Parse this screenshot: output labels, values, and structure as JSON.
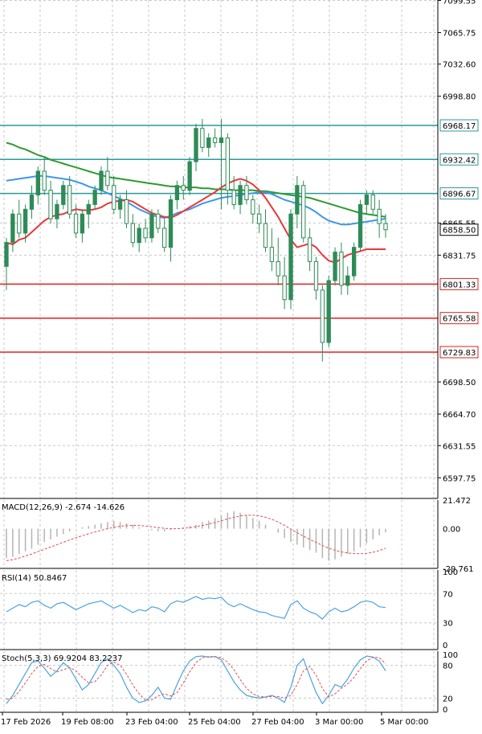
{
  "colors": {
    "background": "#ffffff",
    "grid": "#c8c8c8",
    "frame": "#000000",
    "candle": "#2e8b57",
    "ema_fast": "#e8373a",
    "ema_mid": "#3f97e6",
    "ema_slow": "#2e9a2e",
    "resistance": "#2a9a9a",
    "support": "#e02020",
    "macd_hist": "#b4b4b4",
    "macd_signal": "#e05050",
    "rsi": "#4aa3df",
    "stoch_main": "#4aa3df",
    "stoch_signal": "#e05050"
  },
  "chart_data": [
    {
      "type": "candlestick",
      "panel": "price",
      "ylim": [
        6576,
        7100
      ],
      "y_ticks": [
        {
          "value": 7099.55,
          "label": "7099.55"
        },
        {
          "value": 7065.75,
          "label": "7065.75"
        },
        {
          "value": 7032.6,
          "label": "7032.60"
        },
        {
          "value": 6998.8,
          "label": "6998.80"
        },
        {
          "value": 6865.55,
          "label": "6865.55"
        },
        {
          "value": 6831.75,
          "label": "6831.75"
        },
        {
          "value": 6698.5,
          "label": "6698.50"
        },
        {
          "value": 6664.7,
          "label": "6664.70"
        },
        {
          "value": 6631.55,
          "label": "6631.55"
        },
        {
          "value": 6597.75,
          "label": "6597.75"
        }
      ],
      "levels": [
        {
          "value": 6968.17,
          "label": "6968.17",
          "kind": "resistance"
        },
        {
          "value": 6932.42,
          "label": "6932.42",
          "kind": "resistance"
        },
        {
          "value": 6896.67,
          "label": "6896.67",
          "kind": "resistance"
        },
        {
          "value": 6801.33,
          "label": "6801.33",
          "kind": "support"
        },
        {
          "value": 6765.58,
          "label": "6765.58",
          "kind": "support"
        },
        {
          "value": 6729.83,
          "label": "6729.83",
          "kind": "support"
        }
      ],
      "current_price": {
        "value": 6858.5,
        "label": "6858.50"
      },
      "candles": [
        [
          6820,
          6850,
          6795,
          6845
        ],
        [
          6845,
          6880,
          6835,
          6875
        ],
        [
          6875,
          6890,
          6850,
          6855
        ],
        [
          6855,
          6885,
          6845,
          6880
        ],
        [
          6880,
          6905,
          6870,
          6895
        ],
        [
          6895,
          6925,
          6885,
          6920
        ],
        [
          6920,
          6935,
          6895,
          6900
        ],
        [
          6900,
          6910,
          6865,
          6870
        ],
        [
          6870,
          6890,
          6860,
          6885
        ],
        [
          6885,
          6910,
          6880,
          6905
        ],
        [
          6905,
          6915,
          6870,
          6875
        ],
        [
          6875,
          6885,
          6850,
          6855
        ],
        [
          6855,
          6880,
          6845,
          6875
        ],
        [
          6875,
          6890,
          6860,
          6885
        ],
        [
          6885,
          6905,
          6880,
          6900
        ],
        [
          6900,
          6925,
          6895,
          6920
        ],
        [
          6920,
          6935,
          6900,
          6905
        ],
        [
          6905,
          6915,
          6875,
          6880
        ],
        [
          6880,
          6895,
          6870,
          6890
        ],
        [
          6890,
          6900,
          6860,
          6865
        ],
        [
          6865,
          6875,
          6840,
          6845
        ],
        [
          6845,
          6865,
          6835,
          6860
        ],
        [
          6860,
          6870,
          6845,
          6850
        ],
        [
          6850,
          6880,
          6845,
          6875
        ],
        [
          6875,
          6880,
          6855,
          6860
        ],
        [
          6860,
          6870,
          6835,
          6840
        ],
        [
          6840,
          6895,
          6825,
          6890
        ],
        [
          6890,
          6910,
          6880,
          6905
        ],
        [
          6905,
          6915,
          6890,
          6900
        ],
        [
          6900,
          6935,
          6895,
          6930
        ],
        [
          6930,
          6970,
          6920,
          6965
        ],
        [
          6965,
          6975,
          6940,
          6945
        ],
        [
          6945,
          6960,
          6935,
          6955
        ],
        [
          6955,
          6965,
          6945,
          6950
        ],
        [
          6950,
          6975,
          6880,
          6955
        ],
        [
          6955,
          6960,
          6885,
          6900
        ],
        [
          6900,
          6915,
          6880,
          6885
        ],
        [
          6885,
          6910,
          6875,
          6905
        ],
        [
          6905,
          6915,
          6885,
          6890
        ],
        [
          6890,
          6895,
          6865,
          6875
        ],
        [
          6875,
          6885,
          6855,
          6865
        ],
        [
          6865,
          6880,
          6835,
          6840
        ],
        [
          6840,
          6860,
          6815,
          6825
        ],
        [
          6825,
          6850,
          6800,
          6810
        ],
        [
          6810,
          6830,
          6775,
          6785
        ],
        [
          6785,
          6880,
          6775,
          6875
        ],
        [
          6875,
          6915,
          6860,
          6905
        ],
        [
          6905,
          6910,
          6845,
          6850
        ],
        [
          6850,
          6860,
          6815,
          6825
        ],
        [
          6825,
          6830,
          6785,
          6795
        ],
        [
          6795,
          6800,
          6720,
          6740
        ],
        [
          6740,
          6810,
          6735,
          6805
        ],
        [
          6805,
          6840,
          6800,
          6835
        ],
        [
          6835,
          6845,
          6790,
          6800
        ],
        [
          6800,
          6820,
          6790,
          6810
        ],
        [
          6810,
          6845,
          6805,
          6840
        ],
        [
          6840,
          6890,
          6835,
          6885
        ],
        [
          6885,
          6900,
          6875,
          6895
        ],
        [
          6895,
          6900,
          6875,
          6880
        ],
        [
          6880,
          6890,
          6850,
          6865
        ],
        [
          6865,
          6875,
          6850,
          6858.5
        ]
      ],
      "ema_fast": [
        6845,
        6843,
        6848,
        6850,
        6856,
        6862,
        6868,
        6872,
        6874,
        6875,
        6878,
        6880,
        6879,
        6879,
        6880,
        6882,
        6886,
        6888,
        6889,
        6890,
        6888,
        6884,
        6880,
        6876,
        6874,
        6872,
        6871,
        6874,
        6878,
        6882,
        6886,
        6890,
        6894,
        6898,
        6903,
        6907,
        6910,
        6912,
        6910,
        6906,
        6900,
        6892,
        6882,
        6872,
        6860,
        6848,
        6840,
        6842,
        6844,
        6840,
        6832,
        6826,
        6824,
        6828,
        6832,
        6834,
        6836,
        6838,
        6838,
        6838,
        6838
      ],
      "ema_mid": [
        6910,
        6911,
        6912,
        6913,
        6914,
        6915,
        6915,
        6914,
        6913,
        6912,
        6911,
        6909,
        6907,
        6904,
        6902,
        6900,
        6897,
        6894,
        6891,
        6888,
        6884,
        6880,
        6877,
        6874,
        6872,
        6871,
        6873,
        6876,
        6878,
        6880,
        6883,
        6886,
        6888,
        6890,
        6892,
        6893,
        6894,
        6895,
        6896,
        6897,
        6898,
        6898,
        6896,
        6893,
        6890,
        6888,
        6886,
        6884,
        6881,
        6877,
        6872,
        6868,
        6866,
        6864,
        6864,
        6865,
        6866,
        6867,
        6868,
        6869,
        6870
      ],
      "ema_slow": [
        6950,
        6948,
        6945,
        6943,
        6940,
        6937,
        6935,
        6932,
        6930,
        6928,
        6926,
        6924,
        6922,
        6920,
        6918,
        6916,
        6914,
        6913,
        6912,
        6911,
        6910,
        6909,
        6908,
        6907,
        6906,
        6905,
        6904,
        6904,
        6903,
        6903,
        6903,
        6902,
        6902,
        6901,
        6901,
        6901,
        6900,
        6900,
        6900,
        6900,
        6899,
        6899,
        6898,
        6897,
        6896,
        6895,
        6894,
        6893,
        6892,
        6890,
        6888,
        6886,
        6884,
        6882,
        6880,
        6878,
        6876,
        6875,
        6874,
        6873,
        6872
      ]
    },
    {
      "type": "bar",
      "panel": "macd",
      "title": "MACD(12,26,9) -2.674 -14.626",
      "ylim": [
        -29.761,
        21.472
      ],
      "y_ticks": [
        {
          "value": 21.472,
          "label": "21.472"
        },
        {
          "value": 0.0,
          "label": "0.00"
        },
        {
          "value": -29.761,
          "label": "-29.761"
        }
      ],
      "histogram": [
        -22,
        -21,
        -19,
        -17,
        -15,
        -12,
        -10,
        -8,
        -6,
        -4,
        -2,
        0,
        1,
        2,
        3,
        4,
        5,
        6,
        5,
        4,
        3,
        1,
        0,
        -1,
        -2,
        -2,
        -1,
        0,
        1,
        2,
        3,
        5,
        6,
        8,
        10,
        12,
        13,
        12,
        10,
        8,
        6,
        3,
        0,
        -3,
        -7,
        -10,
        -12,
        -14,
        -16,
        -18,
        -22,
        -24,
        -23,
        -21,
        -19,
        -17,
        -14,
        -11,
        -8,
        -5,
        -2.674
      ],
      "signal": [
        -24,
        -23.2,
        -22,
        -20.5,
        -19,
        -17.2,
        -15.5,
        -13.7,
        -12,
        -10.2,
        -8.5,
        -6.8,
        -5.2,
        -3.8,
        -2.5,
        -1.2,
        0,
        1,
        1.8,
        2.3,
        2.5,
        2.4,
        2,
        1.4,
        0.8,
        0.3,
        0,
        0,
        0.3,
        0.8,
        1.5,
        2.4,
        3.4,
        4.6,
        5.9,
        7.3,
        8.6,
        9.6,
        10.1,
        10.1,
        9.6,
        8.6,
        7,
        5,
        2.5,
        -0.2,
        -3,
        -5.6,
        -8,
        -10.3,
        -12.6,
        -14.6,
        -16.2,
        -17.4,
        -18.2,
        -18.7,
        -18.8,
        -18.5,
        -17.7,
        -16.4,
        -14.626
      ]
    },
    {
      "type": "line",
      "panel": "rsi",
      "title": "RSI(14) 50.8467",
      "ylim": [
        0,
        100
      ],
      "y_ticks": [
        {
          "value": 100,
          "label": "100"
        },
        {
          "value": 70,
          "label": "70"
        },
        {
          "value": 30,
          "label": "30"
        },
        {
          "value": 0,
          "label": "0"
        }
      ],
      "values": [
        45,
        50,
        55,
        52,
        58,
        60,
        54,
        50,
        56,
        58,
        53,
        48,
        52,
        56,
        58,
        60,
        55,
        50,
        54,
        49,
        44,
        48,
        46,
        52,
        50,
        45,
        56,
        60,
        58,
        62,
        66,
        62,
        64,
        63,
        65,
        56,
        52,
        56,
        52,
        48,
        45,
        44,
        40,
        38,
        36,
        55,
        60,
        50,
        45,
        42,
        35,
        45,
        50,
        45,
        47,
        52,
        58,
        60,
        58,
        52,
        50.8467
      ]
    },
    {
      "type": "line",
      "panel": "stochastic",
      "title": "Stoch(5,3,3) 69.9204 83.2237",
      "ylim": [
        0,
        100
      ],
      "y_ticks": [
        {
          "value": 100,
          "label": "100"
        },
        {
          "value": 80,
          "label": "80"
        },
        {
          "value": 20,
          "label": "20"
        },
        {
          "value": 0,
          "label": "0"
        }
      ],
      "main": [
        10,
        25,
        45,
        65,
        85,
        88,
        75,
        60,
        70,
        85,
        75,
        55,
        35,
        45,
        65,
        85,
        92,
        80,
        65,
        40,
        20,
        12,
        15,
        25,
        40,
        20,
        18,
        45,
        70,
        88,
        96,
        97,
        95,
        96,
        90,
        70,
        50,
        35,
        25,
        22,
        20,
        22,
        25,
        20,
        12,
        40,
        80,
        92,
        60,
        30,
        10,
        25,
        45,
        40,
        55,
        75,
        90,
        97,
        95,
        88,
        69.9204
      ],
      "signal": [
        18,
        20,
        32,
        48,
        65,
        78,
        82,
        74,
        68,
        72,
        76,
        70,
        58,
        48,
        50,
        62,
        80,
        86,
        80,
        64,
        44,
        28,
        16,
        17,
        24,
        28,
        24,
        30,
        48,
        68,
        85,
        94,
        96,
        96,
        94,
        86,
        72,
        54,
        38,
        28,
        23,
        22,
        23,
        23,
        20,
        25,
        45,
        70,
        78,
        62,
        38,
        22,
        28,
        38,
        46,
        58,
        74,
        88,
        95,
        94,
        83.2237
      ]
    }
  ],
  "x_axis": {
    "labels": [
      "17 Feb 2026",
      "19 Feb 08:00",
      "23 Feb 04:00",
      "25 Feb 04:00",
      "27 Feb 04:00",
      "3 Mar 00:00",
      "5 Mar 00:00"
    ]
  }
}
